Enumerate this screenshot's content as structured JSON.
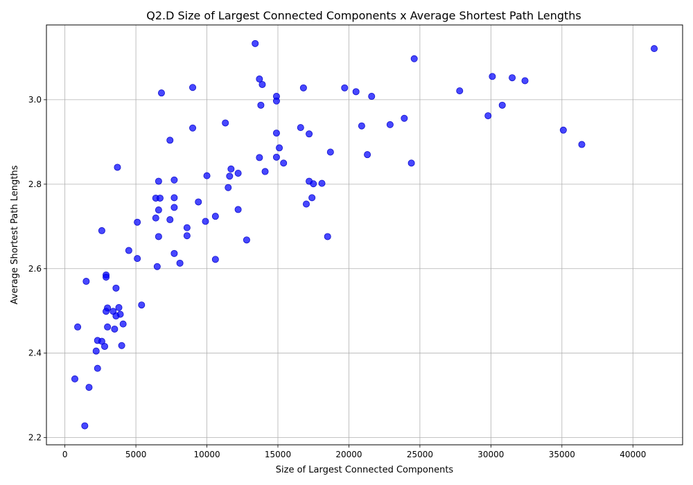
{
  "chart_data": {
    "type": "scatter",
    "title": "Q2.D Size of Largest Connected Components x Average Shortest Path Lengths",
    "xlabel": "Size of Largest Connected Components",
    "ylabel": "Average Shortest Path Lengths",
    "xlim": [
      -1300,
      43500
    ],
    "ylim": [
      2.183,
      3.177
    ],
    "xticks": [
      0,
      5000,
      10000,
      15000,
      20000,
      25000,
      30000,
      35000,
      40000
    ],
    "xtick_labels": [
      "0",
      "5000",
      "10000",
      "15000",
      "20000",
      "25000",
      "30000",
      "35000",
      "40000"
    ],
    "yticks": [
      2.2,
      2.4,
      2.6,
      2.8,
      3.0
    ],
    "ytick_labels": [
      "2.2",
      "2.4",
      "2.6",
      "2.8",
      "3.0"
    ],
    "grid": true,
    "color": "#0000ff",
    "points": [
      [
        13400,
        3.133
      ],
      [
        41500,
        3.121
      ],
      [
        24600,
        3.097
      ],
      [
        13700,
        3.049
      ],
      [
        13900,
        3.036
      ],
      [
        9000,
        3.029
      ],
      [
        6800,
        3.016
      ],
      [
        16800,
        3.028
      ],
      [
        19700,
        3.028
      ],
      [
        20500,
        3.019
      ],
      [
        21600,
        3.008
      ],
      [
        14900,
        3.008
      ],
      [
        14900,
        2.997
      ],
      [
        13800,
        2.987
      ],
      [
        30100,
        3.055
      ],
      [
        31500,
        3.052
      ],
      [
        32400,
        3.045
      ],
      [
        27800,
        3.021
      ],
      [
        30800,
        2.987
      ],
      [
        29800,
        2.962
      ],
      [
        23900,
        2.956
      ],
      [
        22900,
        2.941
      ],
      [
        20900,
        2.938
      ],
      [
        35100,
        2.928
      ],
      [
        36400,
        2.894
      ],
      [
        11300,
        2.945
      ],
      [
        9000,
        2.933
      ],
      [
        16600,
        2.934
      ],
      [
        14900,
        2.921
      ],
      [
        17200,
        2.919
      ],
      [
        7400,
        2.904
      ],
      [
        15100,
        2.886
      ],
      [
        18700,
        2.876
      ],
      [
        21300,
        2.87
      ],
      [
        14900,
        2.864
      ],
      [
        13700,
        2.863
      ],
      [
        15400,
        2.85
      ],
      [
        24400,
        2.85
      ],
      [
        3700,
        2.84
      ],
      [
        11700,
        2.836
      ],
      [
        14100,
        2.83
      ],
      [
        12200,
        2.826
      ],
      [
        10000,
        2.82
      ],
      [
        11600,
        2.819
      ],
      [
        6600,
        2.807
      ],
      [
        7700,
        2.81
      ],
      [
        17200,
        2.807
      ],
      [
        17500,
        2.801
      ],
      [
        18100,
        2.802
      ],
      [
        11500,
        2.792
      ],
      [
        6400,
        2.767
      ],
      [
        6700,
        2.767
      ],
      [
        7700,
        2.768
      ],
      [
        17400,
        2.768
      ],
      [
        9400,
        2.758
      ],
      [
        17000,
        2.753
      ],
      [
        7700,
        2.745
      ],
      [
        6600,
        2.739
      ],
      [
        12200,
        2.74
      ],
      [
        10600,
        2.724
      ],
      [
        6400,
        2.72
      ],
      [
        7400,
        2.716
      ],
      [
        9900,
        2.712
      ],
      [
        5100,
        2.71
      ],
      [
        8600,
        2.697
      ],
      [
        2600,
        2.69
      ],
      [
        6600,
        2.676
      ],
      [
        8600,
        2.678
      ],
      [
        18500,
        2.676
      ],
      [
        12800,
        2.668
      ],
      [
        4500,
        2.643
      ],
      [
        7700,
        2.636
      ],
      [
        5100,
        2.624
      ],
      [
        10600,
        2.622
      ],
      [
        8100,
        2.613
      ],
      [
        6500,
        2.605
      ],
      [
        2900,
        2.585
      ],
      [
        2900,
        2.58
      ],
      [
        1500,
        2.57
      ],
      [
        3600,
        2.554
      ],
      [
        5400,
        2.514
      ],
      [
        3000,
        2.507
      ],
      [
        3800,
        2.508
      ],
      [
        2900,
        2.499
      ],
      [
        3400,
        2.499
      ],
      [
        3900,
        2.492
      ],
      [
        3600,
        2.488
      ],
      [
        4100,
        2.469
      ],
      [
        3000,
        2.462
      ],
      [
        3500,
        2.457
      ],
      [
        900,
        2.462
      ],
      [
        2300,
        2.43
      ],
      [
        2600,
        2.428
      ],
      [
        2800,
        2.416
      ],
      [
        4000,
        2.418
      ],
      [
        2200,
        2.405
      ],
      [
        2300,
        2.364
      ],
      [
        700,
        2.339
      ],
      [
        1700,
        2.319
      ],
      [
        1400,
        2.228
      ]
    ]
  }
}
